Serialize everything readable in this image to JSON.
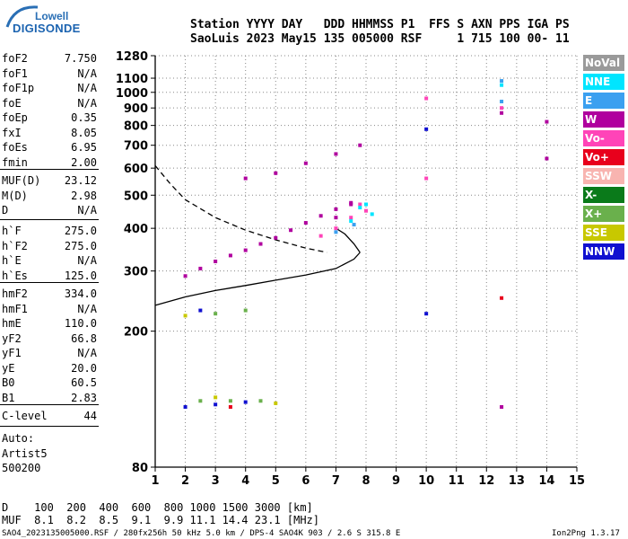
{
  "logo": {
    "line1": "Lowell",
    "line2": "DIGISONDE"
  },
  "header": {
    "line1": "Station YYYY DAY   DDD HHMMSS P1  FFS S AXN PPS IGA PS",
    "line2": "SaoLuis 2023 May15 135 005000 RSF     1 715 100 00- 11"
  },
  "params": {
    "group1": [
      {
        "name": "foF2",
        "value": "7.750"
      },
      {
        "name": "foF1",
        "value": "N/A"
      },
      {
        "name": "foF1p",
        "value": "N/A"
      },
      {
        "name": "foE",
        "value": "N/A"
      },
      {
        "name": "foEp",
        "value": "0.35"
      },
      {
        "name": "fxI",
        "value": "8.05"
      },
      {
        "name": "foEs",
        "value": "6.95"
      },
      {
        "name": "fmin",
        "value": "2.00"
      }
    ],
    "group2": [
      {
        "name": "MUF(D)",
        "value": "23.12"
      },
      {
        "name": "M(D)",
        "value": "2.98"
      },
      {
        "name": "D",
        "value": "N/A"
      }
    ],
    "group3": [
      {
        "name": "h`F",
        "value": "275.0"
      },
      {
        "name": "h`F2",
        "value": "275.0"
      },
      {
        "name": "h`E",
        "value": "N/A"
      },
      {
        "name": "h`Es",
        "value": "125.0"
      }
    ],
    "group4": [
      {
        "name": "hmF2",
        "value": "334.0"
      },
      {
        "name": "hmF1",
        "value": "N/A"
      },
      {
        "name": "hmE",
        "value": "110.0"
      },
      {
        "name": "yF2",
        "value": "66.8"
      },
      {
        "name": "yF1",
        "value": "N/A"
      },
      {
        "name": "yE",
        "value": "20.0"
      },
      {
        "name": "B0",
        "value": "60.5"
      },
      {
        "name": "B1",
        "value": "2.83"
      }
    ],
    "group5": [
      {
        "name": "C-level",
        "value": "44"
      }
    ],
    "auto": [
      "Auto:",
      "Artist5",
      "500200"
    ]
  },
  "legend": [
    {
      "label": "NoVal",
      "color": "#9a9a9a"
    },
    {
      "label": "NNE",
      "color": "#00e5ff"
    },
    {
      "label": "E",
      "color": "#3ba0f0"
    },
    {
      "label": "W",
      "color": "#b0009e"
    },
    {
      "label": "Vo-",
      "color": "#ff44b8"
    },
    {
      "label": "Vo+",
      "color": "#e8001c"
    },
    {
      "label": "SSW",
      "color": "#f8b4b0"
    },
    {
      "label": "X-",
      "color": "#0a7a1a"
    },
    {
      "label": "X+",
      "color": "#6ab04c"
    },
    {
      "label": "SSE",
      "color": "#c8c800"
    },
    {
      "label": "NNW",
      "color": "#1010d0"
    }
  ],
  "chart_data": {
    "type": "scatter",
    "xlabel": "",
    "ylabel": "",
    "xlim": [
      1,
      15
    ],
    "ylim": [
      80,
      1280
    ],
    "x_ticks": [
      1,
      2,
      3,
      4,
      5,
      6,
      7,
      8,
      9,
      10,
      11,
      12,
      13,
      14,
      15
    ],
    "y_ticks": [
      80,
      200,
      300,
      400,
      500,
      600,
      700,
      800,
      900,
      1000,
      1100,
      1280
    ],
    "y_scale": "log",
    "grid": true,
    "legend_position": "right",
    "series": [
      {
        "name": "W",
        "color": "#b0009e",
        "points": [
          [
            2.0,
            290
          ],
          [
            2.5,
            305
          ],
          [
            3.0,
            320
          ],
          [
            3.5,
            333
          ],
          [
            4.0,
            345
          ],
          [
            4.5,
            360
          ],
          [
            5.0,
            375
          ],
          [
            5.5,
            395
          ],
          [
            6.0,
            415
          ],
          [
            6.5,
            435
          ],
          [
            7.0,
            455
          ],
          [
            7.5,
            475
          ],
          [
            4.0,
            560
          ],
          [
            5.0,
            580
          ],
          [
            6.0,
            620
          ],
          [
            7.0,
            660
          ],
          [
            7.8,
            700
          ],
          [
            12.5,
            870
          ],
          [
            14.0,
            640
          ],
          [
            14.0,
            820
          ],
          [
            7.0,
            430
          ],
          [
            7.5,
            470
          ],
          [
            12.5,
            120
          ]
        ]
      },
      {
        "name": "Vo-",
        "color": "#ff44b8",
        "points": [
          [
            6.5,
            380
          ],
          [
            7.0,
            400
          ],
          [
            7.5,
            430
          ],
          [
            8.0,
            450
          ],
          [
            7.8,
            470
          ],
          [
            10.0,
            560
          ],
          [
            10.0,
            960
          ],
          [
            12.5,
            900
          ]
        ]
      },
      {
        "name": "NNE",
        "color": "#00e5ff",
        "points": [
          [
            7.5,
            420
          ],
          [
            7.8,
            460
          ],
          [
            8.0,
            470
          ],
          [
            8.2,
            440
          ],
          [
            12.5,
            1050
          ]
        ]
      },
      {
        "name": "E",
        "color": "#3ba0f0",
        "points": [
          [
            7.0,
            390
          ],
          [
            7.6,
            410
          ],
          [
            12.5,
            1080
          ],
          [
            12.5,
            940
          ]
        ]
      },
      {
        "name": "X+",
        "color": "#6ab04c",
        "points": [
          [
            2.5,
            125
          ],
          [
            3.5,
            125
          ],
          [
            4.5,
            125
          ],
          [
            3.0,
            225
          ],
          [
            4.0,
            230
          ]
        ]
      },
      {
        "name": "NNW",
        "color": "#1010d0",
        "points": [
          [
            2.0,
            120
          ],
          [
            3.0,
            122
          ],
          [
            4.0,
            124
          ],
          [
            2.5,
            230
          ],
          [
            10.0,
            780
          ],
          [
            10.0,
            225
          ]
        ]
      },
      {
        "name": "SSE",
        "color": "#c8c800",
        "points": [
          [
            3.0,
            128
          ],
          [
            5.0,
            123
          ],
          [
            2.0,
            222
          ]
        ]
      },
      {
        "name": "Vo+",
        "color": "#e8001c",
        "points": [
          [
            3.5,
            120
          ],
          [
            12.5,
            250
          ]
        ]
      }
    ],
    "trace_solid": [
      [
        1.0,
        238
      ],
      [
        2.0,
        252
      ],
      [
        3.0,
        263
      ],
      [
        4.0,
        272
      ],
      [
        5.0,
        282
      ],
      [
        6.0,
        292
      ],
      [
        7.0,
        305
      ],
      [
        7.6,
        325
      ],
      [
        7.8,
        340
      ]
    ],
    "profile_solid": [
      [
        7.8,
        340
      ],
      [
        7.6,
        360
      ],
      [
        7.3,
        385
      ],
      [
        7.0,
        400
      ]
    ],
    "profile_dashed": [
      [
        1.0,
        610
      ],
      [
        1.5,
        540
      ],
      [
        2.0,
        485
      ],
      [
        3.0,
        430
      ],
      [
        4.0,
        395
      ],
      [
        5.0,
        370
      ],
      [
        6.0,
        350
      ],
      [
        6.7,
        340
      ]
    ]
  },
  "bottom": {
    "d_row": "D    100  200  400  600  800 1000 1500 3000 [km]",
    "muf_row": "MUF  8.1  8.2  8.5  9.1  9.9 11.1 14.4 23.1 [MHz]"
  },
  "footer": {
    "left": "SAO4_2023135005000.RSF / 280fx256h 50 kHz 5.0 km / DPS-4 SAO4K 903 / 2.6 S 315.8 E",
    "right": "Ion2Png 1.3.17"
  }
}
